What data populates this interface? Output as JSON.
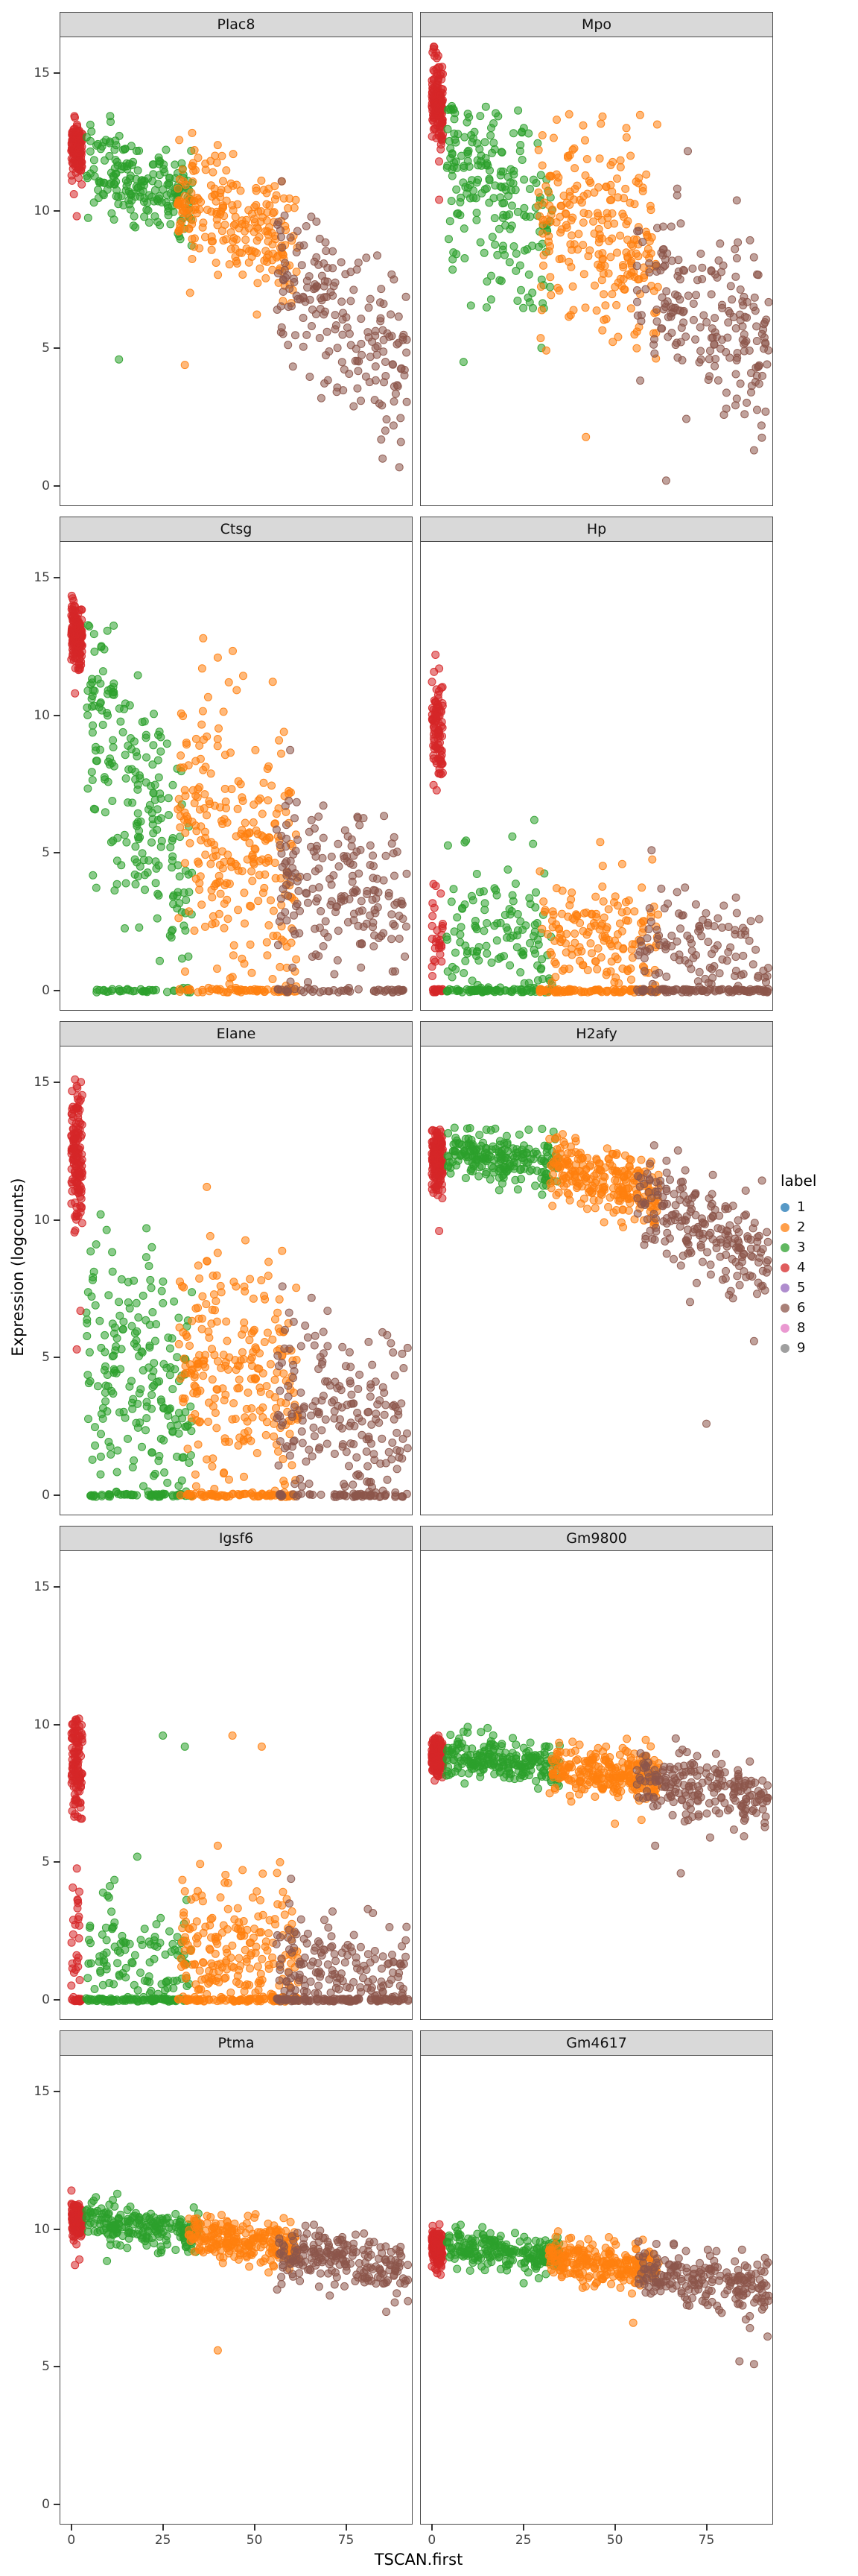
{
  "legend": {
    "title": "label",
    "entries": [
      {
        "label": "1",
        "color": "#1f77b4"
      },
      {
        "label": "2",
        "color": "#ff7f0e"
      },
      {
        "label": "3",
        "color": "#2ca02c"
      },
      {
        "label": "4",
        "color": "#d62728"
      },
      {
        "label": "5",
        "color": "#9467bd"
      },
      {
        "label": "6",
        "color": "#8c564b"
      },
      {
        "label": "8",
        "color": "#e377c2"
      },
      {
        "label": "9",
        "color": "#7f7f7f"
      }
    ]
  },
  "palette": {
    "2": "#ff7f0e",
    "3": "#2ca02c",
    "4": "#d62728",
    "6": "#8c564b"
  },
  "colors": {
    "strip_bg": "#d9d9d9",
    "panel_border": "#4a4a4a",
    "tick_text": "#444444"
  },
  "chart_data": {
    "type": "scatter",
    "title": "",
    "xlabel": "TSCAN.first",
    "ylabel": "Expression (logcounts)",
    "x_ticks": [
      0,
      25,
      50,
      75
    ],
    "y_ticks": [
      0,
      5,
      10,
      15
    ],
    "xlim": [
      -3,
      93
    ],
    "ylim": [
      -0.7,
      16.3
    ],
    "point_alpha": 0.55,
    "legend_position": "right",
    "grid": false,
    "facets": [
      {
        "name": "Plac8",
        "clusters": [
          {
            "label": "4",
            "n": 140,
            "x": [
              0,
              3
            ],
            "y": [
              12.3,
              12.1
            ],
            "sd": 0.45,
            "ymax": 13.6
          },
          {
            "label": "3",
            "n": 200,
            "x": [
              4,
              33
            ],
            "y": [
              11.8,
              10.2
            ],
            "sd": 0.85
          },
          {
            "label": "2",
            "n": 230,
            "x": [
              29,
              62
            ],
            "y": [
              10.8,
              8.6
            ],
            "sd": 1.15
          },
          {
            "label": "6",
            "n": 190,
            "x": [
              56,
              92
            ],
            "y": [
              8.0,
              4.2
            ],
            "sd": 1.5
          }
        ],
        "zeros": [],
        "outliers": [
          [
            "4",
            1.5,
            9.8
          ],
          [
            "3",
            13,
            4.6
          ],
          [
            "2",
            31,
            4.4
          ],
          [
            "6",
            85,
            1.0
          ],
          [
            "6",
            90,
            1.6
          ],
          [
            "6",
            88,
            2.2
          ]
        ]
      },
      {
        "name": "Mpo",
        "clusters": [
          {
            "label": "4",
            "n": 150,
            "x": [
              0,
              3
            ],
            "y": [
              14.4,
              13.6
            ],
            "sd": 0.8,
            "ymax": 16.0
          },
          {
            "label": "3",
            "n": 210,
            "x": [
              4,
              33
            ],
            "y": [
              12.0,
              9.2
            ],
            "sd": 1.7,
            "ymax": 13.8
          },
          {
            "label": "2",
            "n": 240,
            "x": [
              29,
              62
            ],
            "y": [
              10.0,
              8.0
            ],
            "sd": 1.9,
            "ymax": 13.6
          },
          {
            "label": "6",
            "n": 200,
            "x": [
              56,
              92
            ],
            "y": [
              7.6,
              4.6
            ],
            "sd": 1.6
          }
        ],
        "zeros": [],
        "outliers": [
          [
            "6",
            64,
            0.2
          ],
          [
            "6",
            88,
            1.3
          ],
          [
            "4",
            2,
            10.4
          ]
        ]
      },
      {
        "name": "Ctsg",
        "clusters": [
          {
            "label": "4",
            "n": 140,
            "x": [
              0,
              3
            ],
            "y": [
              13.1,
              12.9
            ],
            "sd": 0.55,
            "ymax": 14.6
          },
          {
            "label": "3",
            "n": 210,
            "x": [
              4,
              33
            ],
            "y": [
              10.5,
              3.0
            ],
            "sd": 2.2,
            "clamp0": true,
            "ymax": 13.4
          },
          {
            "label": "2",
            "n": 250,
            "x": [
              29,
              62
            ],
            "y": [
              6.5,
              4.0
            ],
            "sd": 2.4,
            "clamp0": true,
            "ymax": 13.0
          },
          {
            "label": "6",
            "n": 190,
            "x": [
              56,
              92
            ],
            "y": [
              4.2,
              3.0
            ],
            "sd": 1.4,
            "clamp0": true
          }
        ],
        "zeros": [
          {
            "label": "3",
            "n": 35,
            "x": [
              6,
              33
            ]
          },
          {
            "label": "2",
            "n": 55,
            "x": [
              29,
              62
            ]
          },
          {
            "label": "6",
            "n": 45,
            "x": [
              56,
              92
            ]
          }
        ],
        "outliers": [
          [
            "2",
            36,
            12.8
          ],
          [
            "2",
            40,
            12.1
          ],
          [
            "2",
            43,
            11.2
          ],
          [
            "3",
            9,
            12.4
          ],
          [
            "4",
            1,
            10.8
          ]
        ]
      },
      {
        "name": "Hp",
        "clusters": [
          {
            "label": "4",
            "n": 90,
            "x": [
              0,
              3
            ],
            "y": [
              9.6,
              9.2
            ],
            "sd": 0.9,
            "ymax": 11.6
          },
          {
            "label": "4",
            "n": 28,
            "x": [
              0,
              3
            ],
            "y": [
              1.8,
              1.8
            ],
            "sd": 1.0,
            "clamp0": true
          },
          {
            "label": "3",
            "n": 120,
            "x": [
              4,
              33
            ],
            "y": [
              2.2,
              1.6
            ],
            "sd": 1.3,
            "clamp0": true
          },
          {
            "label": "2",
            "n": 150,
            "x": [
              29,
              62
            ],
            "y": [
              2.4,
              2.0
            ],
            "sd": 1.0,
            "clamp0": true
          },
          {
            "label": "6",
            "n": 110,
            "x": [
              56,
              92
            ],
            "y": [
              1.8,
              1.5
            ],
            "sd": 0.9,
            "clamp0": true
          }
        ],
        "zeros": [
          {
            "label": "4",
            "n": 18,
            "x": [
              0,
              3
            ]
          },
          {
            "label": "3",
            "n": 70,
            "x": [
              4,
              33
            ]
          },
          {
            "label": "2",
            "n": 85,
            "x": [
              29,
              62
            ]
          },
          {
            "label": "6",
            "n": 95,
            "x": [
              56,
              92
            ]
          }
        ],
        "outliers": [
          [
            "4",
            1,
            12.2
          ],
          [
            "4",
            2,
            11.7
          ],
          [
            "3",
            22,
            5.6
          ],
          [
            "3",
            28,
            6.2
          ],
          [
            "2",
            46,
            5.4
          ],
          [
            "2",
            52,
            4.6
          ],
          [
            "6",
            60,
            5.1
          ]
        ]
      },
      {
        "name": "Elane",
        "clusters": [
          {
            "label": "4",
            "n": 140,
            "x": [
              0,
              3
            ],
            "y": [
              12.6,
              12.2
            ],
            "sd": 1.2,
            "ymax": 15.2
          },
          {
            "label": "3",
            "n": 200,
            "x": [
              4,
              33
            ],
            "y": [
              5.2,
              3.4
            ],
            "sd": 2.2,
            "clamp0": true,
            "ymax": 10.4
          },
          {
            "label": "2",
            "n": 240,
            "x": [
              29,
              62
            ],
            "y": [
              5.2,
              3.8
            ],
            "sd": 2.2,
            "clamp0": true,
            "ymax": 10.8
          },
          {
            "label": "6",
            "n": 190,
            "x": [
              56,
              92
            ],
            "y": [
              3.6,
              2.4
            ],
            "sd": 1.6,
            "clamp0": true
          }
        ],
        "zeros": [
          {
            "label": "3",
            "n": 55,
            "x": [
              5,
              33
            ]
          },
          {
            "label": "2",
            "n": 65,
            "x": [
              29,
              62
            ]
          },
          {
            "label": "6",
            "n": 55,
            "x": [
              56,
              92
            ]
          }
        ],
        "outliers": [
          [
            "4",
            1,
            15.1
          ],
          [
            "4",
            1.5,
            5.3
          ],
          [
            "4",
            2.5,
            6.7
          ],
          [
            "2",
            37,
            11.2
          ],
          [
            "3",
            8,
            10.2
          ]
        ]
      },
      {
        "name": "H2afy",
        "clusters": [
          {
            "label": "4",
            "n": 150,
            "x": [
              0,
              3
            ],
            "y": [
              12.2,
              12.2
            ],
            "sd": 0.55,
            "ymax": 13.3
          },
          {
            "label": "3",
            "n": 220,
            "x": [
              4,
              35
            ],
            "y": [
              12.5,
              12.0
            ],
            "sd": 0.45,
            "ymax": 13.4
          },
          {
            "label": "2",
            "n": 250,
            "x": [
              32,
              62
            ],
            "y": [
              12.0,
              10.9
            ],
            "sd": 0.6
          },
          {
            "label": "6",
            "n": 210,
            "x": [
              56,
              92
            ],
            "y": [
              10.9,
              8.3
            ],
            "sd": 0.9
          }
        ],
        "zeros": [],
        "outliers": [
          [
            "6",
            75,
            2.6
          ],
          [
            "4",
            2,
            9.6
          ],
          [
            "6",
            88,
            5.6
          ]
        ]
      },
      {
        "name": "Igsf6",
        "clusters": [
          {
            "label": "4",
            "n": 110,
            "x": [
              0,
              3
            ],
            "y": [
              8.6,
              8.4
            ],
            "sd": 0.95,
            "ymax": 10.3
          },
          {
            "label": "4",
            "n": 26,
            "x": [
              0,
              3
            ],
            "y": [
              2.2,
              2.2
            ],
            "sd": 1.3,
            "clamp0": true
          },
          {
            "label": "3",
            "n": 110,
            "x": [
              4,
              33
            ],
            "y": [
              1.6,
              1.4
            ],
            "sd": 1.2,
            "clamp0": true
          },
          {
            "label": "2",
            "n": 200,
            "x": [
              29,
              62
            ],
            "y": [
              2.0,
              1.5
            ],
            "sd": 1.2,
            "clamp0": true
          },
          {
            "label": "6",
            "n": 150,
            "x": [
              56,
              92
            ],
            "y": [
              1.3,
              1.0
            ],
            "sd": 0.9,
            "clamp0": true
          }
        ],
        "zeros": [
          {
            "label": "4",
            "n": 16,
            "x": [
              0,
              3
            ]
          },
          {
            "label": "3",
            "n": 80,
            "x": [
              4,
              33
            ]
          },
          {
            "label": "2",
            "n": 80,
            "x": [
              29,
              62
            ]
          },
          {
            "label": "6",
            "n": 100,
            "x": [
              56,
              92
            ]
          }
        ],
        "outliers": [
          [
            "3",
            25,
            9.6
          ],
          [
            "3",
            31,
            9.2
          ],
          [
            "2",
            44,
            9.6
          ],
          [
            "2",
            52,
            9.2
          ],
          [
            "2",
            40,
            5.6
          ],
          [
            "2",
            57,
            5.0
          ],
          [
            "3",
            18,
            5.2
          ],
          [
            "6",
            60,
            4.4
          ],
          [
            "4",
            1,
            10.1
          ]
        ]
      },
      {
        "name": "Gm9800",
        "clusters": [
          {
            "label": "4",
            "n": 170,
            "x": [
              0,
              3
            ],
            "y": [
              8.9,
              8.8
            ],
            "sd": 0.35
          },
          {
            "label": "3",
            "n": 220,
            "x": [
              4,
              35
            ],
            "y": [
              8.9,
              8.5
            ],
            "sd": 0.4
          },
          {
            "label": "2",
            "n": 250,
            "x": [
              32,
              62
            ],
            "y": [
              8.5,
              8.0
            ],
            "sd": 0.45
          },
          {
            "label": "6",
            "n": 210,
            "x": [
              56,
              92
            ],
            "y": [
              8.0,
              7.3
            ],
            "sd": 0.55
          }
        ],
        "zeros": [],
        "outliers": [
          [
            "6",
            68,
            4.6
          ],
          [
            "6",
            61,
            5.6
          ],
          [
            "6",
            76,
            5.9
          ],
          [
            "2",
            50,
            6.4
          ]
        ]
      },
      {
        "name": "Ptma",
        "clusters": [
          {
            "label": "4",
            "n": 170,
            "x": [
              0,
              3
            ],
            "y": [
              10.4,
              10.3
            ],
            "sd": 0.3
          },
          {
            "label": "3",
            "n": 220,
            "x": [
              4,
              35
            ],
            "y": [
              10.3,
              9.8
            ],
            "sd": 0.35
          },
          {
            "label": "2",
            "n": 250,
            "x": [
              32,
              62
            ],
            "y": [
              9.9,
              9.3
            ],
            "sd": 0.4
          },
          {
            "label": "6",
            "n": 210,
            "x": [
              56,
              92
            ],
            "y": [
              9.3,
              8.5
            ],
            "sd": 0.5
          }
        ],
        "zeros": [],
        "outliers": [
          [
            "2",
            40,
            5.6
          ],
          [
            "4",
            1,
            8.7
          ],
          [
            "4",
            2.2,
            8.9
          ],
          [
            "6",
            86,
            7.0
          ]
        ]
      },
      {
        "name": "Gm4617",
        "clusters": [
          {
            "label": "4",
            "n": 170,
            "x": [
              0,
              3
            ],
            "y": [
              9.4,
              9.3
            ],
            "sd": 0.3
          },
          {
            "label": "3",
            "n": 220,
            "x": [
              4,
              35
            ],
            "y": [
              9.4,
              9.0
            ],
            "sd": 0.35
          },
          {
            "label": "2",
            "n": 250,
            "x": [
              32,
              62
            ],
            "y": [
              9.0,
              8.5
            ],
            "sd": 0.4
          },
          {
            "label": "6",
            "n": 210,
            "x": [
              56,
              92
            ],
            "y": [
              8.5,
              7.8
            ],
            "sd": 0.5
          }
        ],
        "zeros": [],
        "outliers": [
          [
            "2",
            55,
            6.6
          ],
          [
            "6",
            84,
            5.2
          ],
          [
            "6",
            88,
            5.1
          ],
          [
            "4",
            1.5,
            8.4
          ]
        ]
      }
    ]
  }
}
